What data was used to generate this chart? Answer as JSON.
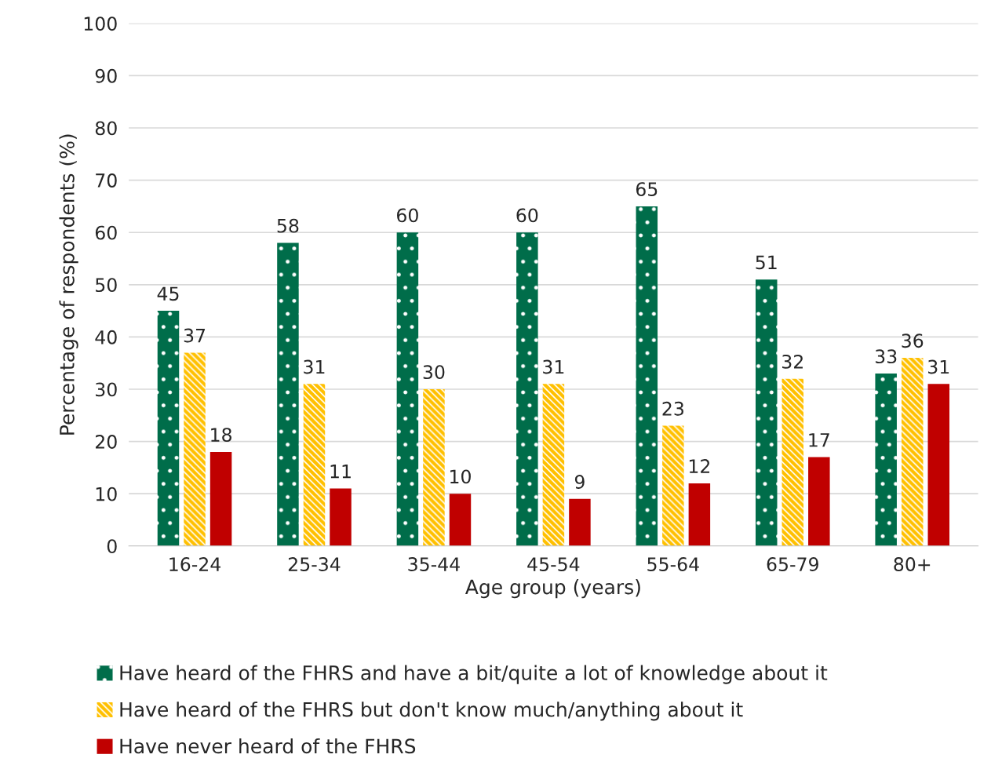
{
  "chart_data": {
    "type": "bar",
    "xlabel": "Age group (years)",
    "ylabel": "Percentage of respondents (%)",
    "categories": [
      "16-24",
      "25-34",
      "35-44",
      "45-54",
      "55-64",
      "65-79",
      "80+"
    ],
    "series": [
      {
        "name": "Have heard of the FHRS and have a bit/quite a lot of knowledge about it",
        "color": "#006d4a",
        "values": [
          45,
          58,
          60,
          60,
          65,
          51,
          33
        ]
      },
      {
        "name": "Have heard of the FHRS but don't know much/anything about it",
        "color": "#ffc000",
        "values": [
          37,
          31,
          30,
          31,
          23,
          32,
          36
        ]
      },
      {
        "name": "Have never heard of the FHRS",
        "color": "#c00000",
        "values": [
          18,
          11,
          10,
          9,
          12,
          17,
          31
        ]
      }
    ],
    "ylim": [
      0,
      100
    ],
    "yticks": [
      0,
      10,
      20,
      30,
      40,
      50,
      60,
      70,
      80,
      90,
      100
    ],
    "grid": "y",
    "legend": "bottom",
    "data_labels": true
  }
}
